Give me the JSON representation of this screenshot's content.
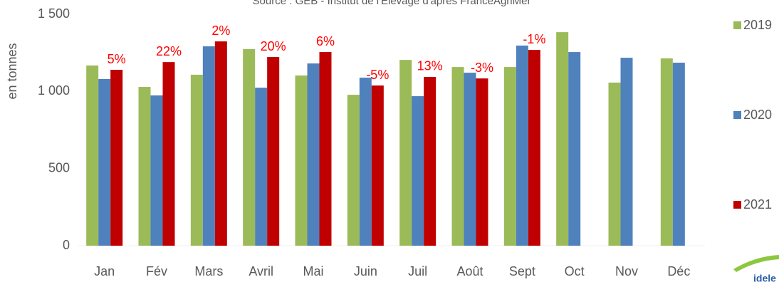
{
  "chart_data": {
    "type": "bar",
    "source": "Source : GEB - Institut de l'Elevage d'après FranceAgriMer",
    "y_label": "en tonnes",
    "categories": [
      "Jan",
      "Fév",
      "Mars",
      "Avril",
      "Mai",
      "Juin",
      "Juil",
      "Août",
      "Sept",
      "Oct",
      "Nov",
      "Déc"
    ],
    "series": [
      {
        "name": "2019",
        "color": "#9bbb59",
        "values": [
          1168,
          1029,
          1108,
          1274,
          1103,
          978,
          1204,
          1158,
          1158,
          1384,
          1057,
          1214
        ]
      },
      {
        "name": "2020",
        "color": "#4f81bd",
        "values": [
          1080,
          974,
          1292,
          1024,
          1181,
          1089,
          969,
          1121,
          1297,
          1255,
          1218,
          1186
        ]
      },
      {
        "name": "2021",
        "color": "#c00000",
        "values": [
          1140,
          1190,
          1324,
          1223,
          1255,
          1038,
          1094,
          1084,
          1269,
          null,
          null,
          null
        ]
      }
    ],
    "annotations": [
      {
        "category": "Jan",
        "text": "5%"
      },
      {
        "category": "Fév",
        "text": "22%"
      },
      {
        "category": "Mars",
        "text": "2%"
      },
      {
        "category": "Avril",
        "text": "20%"
      },
      {
        "category": "Mai",
        "text": "6%"
      },
      {
        "category": "Juin",
        "text": "-5%"
      },
      {
        "category": "Juil",
        "text": "13%"
      },
      {
        "category": "Août",
        "text": "-3%"
      },
      {
        "category": "Sept",
        "text": "-1%"
      }
    ],
    "annotation_color": "#ff0000",
    "ylim": [
      0,
      1500
    ],
    "yticks": [
      0,
      500,
      {
        "value": 1000,
        "label": "1 000"
      },
      {
        "value": 1500,
        "label": "1 500"
      }
    ],
    "grid": false,
    "legend": "right",
    "logo": "idele"
  }
}
